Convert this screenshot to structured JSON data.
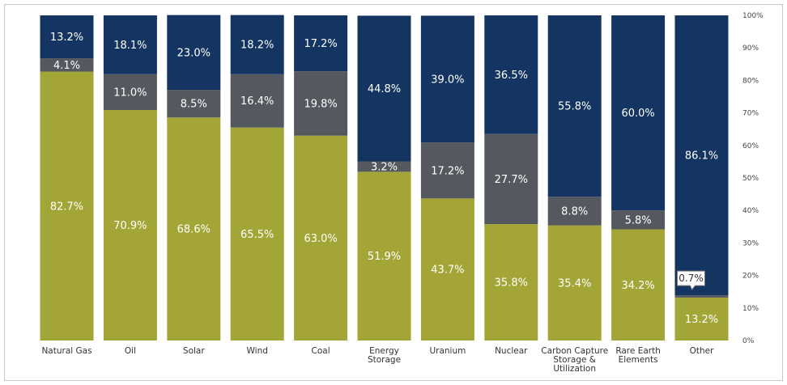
{
  "chart_data": {
    "type": "bar",
    "stacked": true,
    "percent_stacked": true,
    "categories": [
      [
        "Natural Gas"
      ],
      [
        "Oil"
      ],
      [
        "Solar"
      ],
      [
        "Wind"
      ],
      [
        "Coal"
      ],
      [
        "Energy",
        "Storage"
      ],
      [
        "Uranium"
      ],
      [
        "Nuclear"
      ],
      [
        "Carbon Capture",
        "Storage &",
        "Utilization"
      ],
      [
        "Rare Earth",
        "Elements"
      ],
      [
        "Other"
      ]
    ],
    "series": [
      {
        "color": "#a3a637",
        "values": [
          82.7,
          70.9,
          68.6,
          65.5,
          63.0,
          51.9,
          43.7,
          35.8,
          35.4,
          34.2,
          13.2
        ]
      },
      {
        "color": "#55595f",
        "values": [
          4.1,
          11.0,
          8.5,
          16.4,
          19.8,
          3.2,
          17.2,
          27.7,
          8.8,
          5.8,
          0.7
        ]
      },
      {
        "color": "#143561",
        "values": [
          13.2,
          18.1,
          23.0,
          18.2,
          17.2,
          44.8,
          39.0,
          36.5,
          55.8,
          60.0,
          86.1
        ]
      }
    ],
    "value_labels": [
      [
        "82.7%",
        "70.9%",
        "68.6%",
        "65.5%",
        "63.0%",
        "51.9%",
        "43.7%",
        "35.8%",
        "35.4%",
        "34.2%",
        "13.2%"
      ],
      [
        "4.1%",
        "11.0%",
        "8.5%",
        "16.4%",
        "19.8%",
        "3.2%",
        "17.2%",
        "27.7%",
        "8.8%",
        "5.8%",
        "0.7%"
      ],
      [
        "13.2%",
        "18.1%",
        "23.0%",
        "18.2%",
        "17.2%",
        "44.8%",
        "39.0%",
        "36.5%",
        "55.8%",
        "60.0%",
        "86.1%"
      ]
    ],
    "callout_label": "0.7%",
    "ylim": [
      0,
      100
    ],
    "yticks": [
      "0%",
      "10%",
      "20%",
      "30%",
      "40%",
      "50%",
      "60%",
      "70%",
      "80%",
      "90%",
      "100%"
    ],
    "y_axis_position": "right",
    "grid": false,
    "legend": "none"
  }
}
